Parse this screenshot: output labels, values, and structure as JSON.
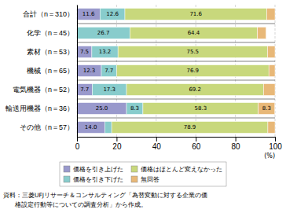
{
  "chart_data": {
    "type": "bar",
    "orientation": "horizontal",
    "stacked": true,
    "categories": [
      "合計（n＝310）",
      "化学（n＝45）",
      "素材（n＝53）",
      "機械（n＝65）",
      "電気機器（n＝52）",
      "輸送用機器（n＝36）",
      "その他（n＝57）"
    ],
    "series": [
      {
        "name": "価格を引き上げた",
        "color": "#9999cc",
        "values": [
          11.6,
          0.0,
          7.5,
          12.3,
          7.7,
          25.0,
          14.0
        ],
        "value_labels": [
          "11.6",
          null,
          "7.5",
          "12.3",
          "7.7",
          "25.0",
          "14.0"
        ]
      },
      {
        "name": "価格を引き下げた",
        "color": "#88cccc",
        "values": [
          12.6,
          26.7,
          13.2,
          7.7,
          17.3,
          8.3,
          3.5
        ],
        "value_labels": [
          "12.6",
          "26.7",
          "13.2",
          "7.7",
          "17.3",
          "8.3",
          null
        ]
      },
      {
        "name": "価格はほとんど変えなかった",
        "color": "#c8d87c",
        "values": [
          71.6,
          64.4,
          75.5,
          76.9,
          69.2,
          58.3,
          78.9
        ],
        "value_labels": [
          "71.6",
          "64.4",
          "75.5",
          "76.9",
          "69.2",
          "58.3",
          "78.9"
        ]
      },
      {
        "name": "無回答",
        "color": "#e8b878",
        "values": [
          4.2,
          4.4,
          3.8,
          3.1,
          5.8,
          8.3,
          3.6
        ],
        "value_labels": [
          null,
          null,
          null,
          null,
          null,
          "8.3",
          null
        ]
      }
    ],
    "xlim": [
      0,
      100
    ],
    "xticks": [
      0,
      20,
      40,
      60,
      80,
      100
    ],
    "xlabel": "(%)",
    "grid": true,
    "legend": "bottom",
    "data_labels": true,
    "annotations": [
      "資料：三菱UFJリサーチ＆コンサルティング「為替変動に対する企業の価",
      "格設定行動等についての調査分析」から作成。"
    ]
  }
}
